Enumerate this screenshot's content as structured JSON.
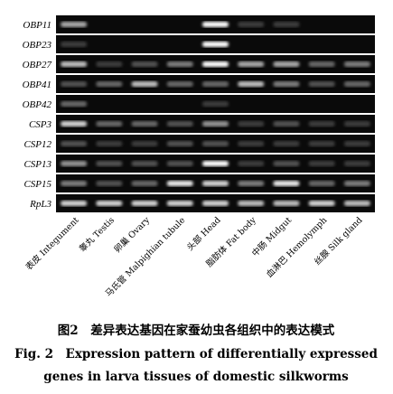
{
  "gel": {
    "rows": [
      "OBP11",
      "OBP23",
      "OBP27",
      "OBP41",
      "OBP42",
      "CSP3",
      "CSP12",
      "CSP13",
      "CSP15",
      "RpL3"
    ],
    "columns": [
      "表皮 Integument",
      "睾丸 Testis",
      "卵巢 Ovary",
      "马氏管 Malpighian tubule",
      "头部 Head",
      "脂肪体 Fat body",
      "中肠 Midgut",
      "血淋巴 Hemolymph",
      "丝腺 Silk gland"
    ]
  },
  "caption": {
    "cn": "图2　差异表达基因在家蚕幼虫各组织中的表达模式",
    "en_line1": "Fig. 2　Expression pattern of differentially expressed",
    "en_line2": "genes in larva tissues of domestic silkworms"
  }
}
